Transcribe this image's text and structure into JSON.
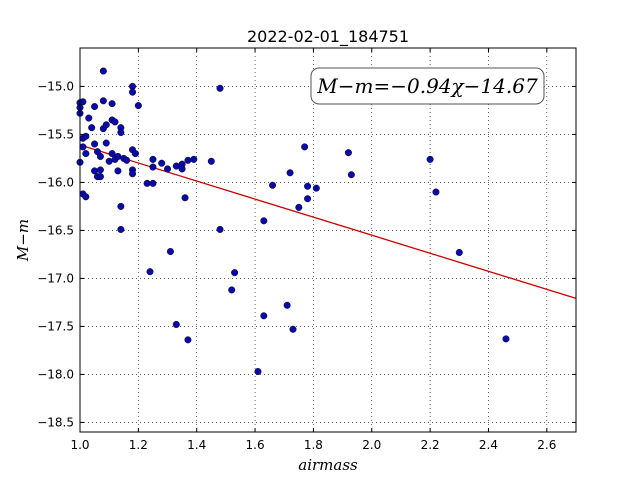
{
  "chart_data": {
    "type": "scatter",
    "title": "2022-02-01_184751",
    "xlabel": "airmass",
    "ylabel": "M−m",
    "xlim": [
      1.0,
      2.7
    ],
    "ylim": [
      -18.6,
      -14.6
    ],
    "grid": true,
    "x_ticks": [
      1.0,
      1.2,
      1.4,
      1.6,
      1.8,
      2.0,
      2.2,
      2.4,
      2.6
    ],
    "x_tick_labels": [
      "1.0",
      "1.2",
      "1.4",
      "1.6",
      "1.8",
      "2.0",
      "2.2",
      "2.4",
      "2.6"
    ],
    "y_ticks": [
      -15.0,
      -15.5,
      -16.0,
      -16.5,
      -17.0,
      -17.5,
      -18.0,
      -18.5
    ],
    "y_tick_labels": [
      "−15.0",
      "−15.5",
      "−16.0",
      "−16.5",
      "−17.0",
      "−17.5",
      "−18.0",
      "−18.5"
    ],
    "annotation": "M−m=−0.94χ−14.67",
    "fit": {
      "slope": -0.94,
      "intercept": -14.67,
      "color": "#cc0000"
    },
    "point_color": "#0a0aa8",
    "points": [
      [
        1.0,
        -15.17
      ],
      [
        1.0,
        -15.22
      ],
      [
        1.0,
        -15.28
      ],
      [
        1.01,
        -15.16
      ],
      [
        1.01,
        -15.54
      ],
      [
        1.0,
        -15.79
      ],
      [
        1.01,
        -15.63
      ],
      [
        1.02,
        -15.52
      ],
      [
        1.01,
        -16.12
      ],
      [
        1.02,
        -16.15
      ],
      [
        1.02,
        -15.7
      ],
      [
        1.03,
        -15.33
      ],
      [
        1.04,
        -15.43
      ],
      [
        1.05,
        -15.21
      ],
      [
        1.05,
        -15.6
      ],
      [
        1.05,
        -15.88
      ],
      [
        1.06,
        -15.94
      ],
      [
        1.06,
        -15.68
      ],
      [
        1.07,
        -15.94
      ],
      [
        1.07,
        -15.87
      ],
      [
        1.07,
        -15.73
      ],
      [
        1.08,
        -15.44
      ],
      [
        1.08,
        -15.15
      ],
      [
        1.08,
        -14.84
      ],
      [
        1.09,
        -15.4
      ],
      [
        1.09,
        -15.59
      ],
      [
        1.1,
        -15.78
      ],
      [
        1.11,
        -15.18
      ],
      [
        1.11,
        -15.35
      ],
      [
        1.11,
        -15.7
      ],
      [
        1.12,
        -15.37
      ],
      [
        1.12,
        -15.76
      ],
      [
        1.13,
        -15.73
      ],
      [
        1.13,
        -15.88
      ],
      [
        1.14,
        -15.43
      ],
      [
        1.14,
        -15.48
      ],
      [
        1.14,
        -16.25
      ],
      [
        1.14,
        -16.49
      ],
      [
        1.15,
        -15.75
      ],
      [
        1.16,
        -15.77
      ],
      [
        1.18,
        -15.0
      ],
      [
        1.18,
        -15.06
      ],
      [
        1.18,
        -15.66
      ],
      [
        1.18,
        -15.87
      ],
      [
        1.18,
        -15.91
      ],
      [
        1.19,
        -15.7
      ],
      [
        1.2,
        -15.2
      ],
      [
        1.23,
        -16.01
      ],
      [
        1.24,
        -16.93
      ],
      [
        1.25,
        -15.76
      ],
      [
        1.25,
        -15.84
      ],
      [
        1.25,
        -16.01
      ],
      [
        1.28,
        -15.8
      ],
      [
        1.3,
        -15.86
      ],
      [
        1.31,
        -16.72
      ],
      [
        1.33,
        -15.83
      ],
      [
        1.33,
        -17.48
      ],
      [
        1.35,
        -15.81
      ],
      [
        1.35,
        -15.86
      ],
      [
        1.36,
        -16.16
      ],
      [
        1.37,
        -15.77
      ],
      [
        1.37,
        -17.64
      ],
      [
        1.39,
        -15.76
      ],
      [
        1.45,
        -15.78
      ],
      [
        1.48,
        -15.02
      ],
      [
        1.48,
        -16.49
      ],
      [
        1.52,
        -17.12
      ],
      [
        1.53,
        -16.94
      ],
      [
        1.61,
        -17.97
      ],
      [
        1.63,
        -17.39
      ],
      [
        1.63,
        -16.4
      ],
      [
        1.66,
        -16.03
      ],
      [
        1.71,
        -17.28
      ],
      [
        1.72,
        -15.9
      ],
      [
        1.73,
        -17.53
      ],
      [
        1.75,
        -16.26
      ],
      [
        1.77,
        -15.63
      ],
      [
        1.78,
        -16.04
      ],
      [
        1.78,
        -16.17
      ],
      [
        1.81,
        -16.06
      ],
      [
        1.92,
        -15.69
      ],
      [
        1.93,
        -15.92
      ],
      [
        2.2,
        -15.76
      ],
      [
        2.22,
        -16.1
      ],
      [
        2.3,
        -16.73
      ],
      [
        2.46,
        -17.63
      ]
    ]
  }
}
